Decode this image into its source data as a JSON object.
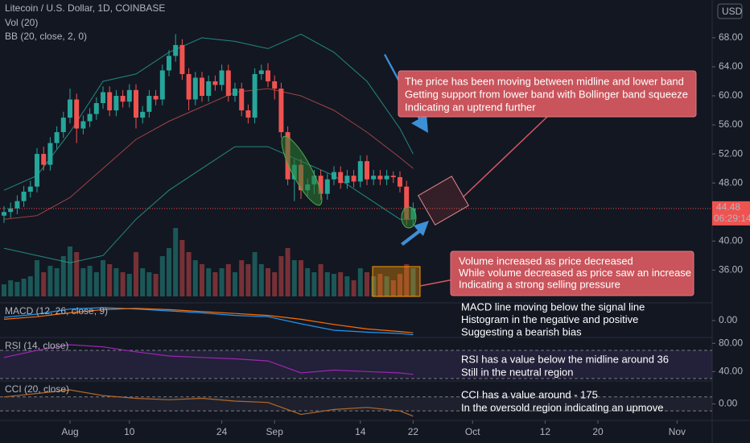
{
  "chart_data": [
    {
      "type": "candlestick",
      "title": "Litecoin / U.S. Dollar, 1D, COINBASE",
      "currency": "USD",
      "up_color": "#26a69a",
      "down_color": "#ef5350",
      "x": [
        "07-22",
        "07-23",
        "07-24",
        "07-25",
        "07-26",
        "07-27",
        "07-28",
        "07-29",
        "07-30",
        "07-31",
        "08-01",
        "08-02",
        "08-03",
        "08-04",
        "08-05",
        "08-06",
        "08-07",
        "08-08",
        "08-09",
        "08-10",
        "08-11",
        "08-12",
        "08-13",
        "08-14",
        "08-15",
        "08-16",
        "08-17",
        "08-18",
        "08-19",
        "08-20",
        "08-21",
        "08-22",
        "08-23",
        "08-24",
        "08-25",
        "08-26",
        "08-27",
        "08-28",
        "08-29",
        "08-30",
        "08-31",
        "09-01",
        "09-02",
        "09-03",
        "09-04",
        "09-05",
        "09-06",
        "09-07",
        "09-08",
        "09-09",
        "09-10",
        "09-11",
        "09-12",
        "09-13",
        "09-14",
        "09-15",
        "09-16",
        "09-17",
        "09-18",
        "09-19",
        "09-20",
        "09-21",
        "09-22"
      ],
      "open": [
        43.5,
        44.0,
        44.5,
        45.5,
        46.8,
        47.5,
        52.0,
        50.5,
        53.5,
        55.0,
        57.0,
        59.5,
        55.5,
        56.5,
        57.5,
        59.0,
        60.5,
        58.0,
        60.0,
        59.2,
        60.8,
        57.0,
        57.8,
        60.0,
        59.5,
        63.5,
        65.5,
        67.0,
        63.0,
        59.5,
        62.5,
        60.0,
        62.0,
        61.5,
        63.5,
        60.0,
        61.0,
        58.0,
        57.0,
        63.0,
        63.5,
        62.0,
        61.0,
        55.0,
        48.5,
        50.5,
        47.0,
        47.8,
        49.0,
        46.5,
        48.5,
        49.5,
        48.0,
        49.0,
        48.2,
        51.0,
        48.5,
        49.0,
        48.5,
        49.0,
        48.8,
        47.5,
        43.0
      ],
      "high": [
        44.8,
        45.3,
        46.3,
        47.6,
        48.3,
        52.8,
        53.0,
        54.3,
        55.8,
        57.8,
        61.0,
        60.3,
        57.3,
        58.3,
        59.8,
        61.3,
        61.3,
        60.8,
        60.8,
        61.6,
        61.6,
        58.6,
        60.8,
        60.8,
        64.3,
        66.3,
        68.5,
        67.8,
        63.8,
        63.3,
        63.3,
        62.8,
        62.8,
        64.3,
        64.3,
        61.8,
        61.8,
        58.8,
        63.8,
        64.3,
        64.5,
        62.8,
        61.8,
        55.8,
        51.3,
        51.3,
        48.6,
        49.8,
        49.8,
        49.3,
        50.3,
        50.3,
        49.8,
        49.8,
        51.8,
        51.8,
        49.8,
        49.8,
        49.8,
        49.6,
        49.6,
        48.3,
        45.3
      ],
      "low": [
        42.5,
        43.2,
        43.7,
        44.7,
        46.0,
        46.7,
        49.7,
        49.7,
        52.7,
        54.2,
        56.2,
        53.5,
        54.7,
        55.7,
        56.7,
        58.2,
        57.2,
        57.2,
        58.4,
        58.4,
        55.5,
        56.2,
        57.0,
        58.7,
        58.7,
        62.7,
        64.7,
        62.2,
        58.0,
        58.7,
        59.2,
        59.2,
        60.7,
        60.7,
        59.2,
        59.2,
        57.2,
        56.2,
        56.2,
        62.2,
        61.2,
        59.5,
        54.2,
        47.7,
        45.5,
        45.8,
        46.2,
        46.5,
        45.7,
        45.7,
        47.7,
        47.2,
        47.2,
        47.4,
        47.4,
        47.7,
        47.7,
        47.7,
        47.7,
        48.0,
        46.7,
        42.2,
        42.2
      ],
      "close": [
        44.0,
        44.5,
        45.5,
        46.8,
        47.5,
        52.0,
        50.5,
        53.5,
        55.0,
        57.0,
        59.5,
        55.5,
        56.5,
        57.5,
        59.0,
        60.5,
        58.0,
        60.0,
        59.2,
        60.8,
        57.0,
        57.8,
        60.0,
        59.5,
        63.5,
        65.5,
        67.0,
        63.0,
        59.5,
        62.5,
        60.0,
        62.0,
        61.5,
        63.5,
        60.0,
        61.0,
        58.0,
        57.0,
        63.0,
        63.5,
        62.0,
        61.0,
        55.0,
        48.5,
        50.5,
        47.0,
        47.8,
        49.0,
        46.5,
        48.5,
        49.5,
        48.0,
        49.0,
        48.2,
        51.0,
        48.5,
        49.0,
        48.5,
        49.0,
        48.8,
        47.5,
        43.0,
        44.5
      ],
      "volume": {
        "name": "Vol (20)",
        "axis": "y2",
        "values": [
          15,
          20,
          18,
          22,
          25,
          45,
          30,
          38,
          35,
          50,
          62,
          55,
          35,
          38,
          30,
          45,
          40,
          35,
          30,
          28,
          55,
          35,
          30,
          28,
          50,
          60,
          85,
          70,
          55,
          45,
          40,
          35,
          30,
          35,
          40,
          30,
          45,
          40,
          55,
          40,
          35,
          30,
          50,
          60,
          45,
          45,
          35,
          30,
          40,
          30,
          28,
          30,
          25,
          20,
          35,
          30,
          25,
          28,
          25,
          20,
          28,
          40,
          35
        ]
      },
      "y2lim": [
        0,
        100
      ],
      "bb": {
        "name": "BB (20, close, 2, 0)",
        "x": [
          "07-22",
          "07-27",
          "08-01",
          "08-06",
          "08-11",
          "08-16",
          "08-21",
          "08-26",
          "08-31",
          "09-05",
          "09-10",
          "09-15",
          "09-20",
          "09-22"
        ],
        "upper": [
          47,
          49,
          55,
          62,
          63,
          66,
          68,
          67.5,
          66.5,
          68.5,
          66,
          62,
          55.5,
          52
        ],
        "basis": [
          43,
          43.5,
          46,
          50,
          54,
          56.5,
          58.5,
          60.5,
          61,
          60,
          58,
          55,
          51.5,
          50
        ],
        "lower": [
          39,
          38,
          37,
          38,
          43,
          47,
          50,
          53,
          53,
          51,
          49,
          46,
          43,
          43
        ],
        "band_color": "#26a69a",
        "basis_color": "#c0504d"
      },
      "last_price": 44.48,
      "countdown": "06:29:14",
      "ylim": [
        31.6,
        73.2
      ],
      "yticks": [
        {
          "value": 36,
          "label": "36.00"
        },
        {
          "value": 40,
          "label": "40.00"
        },
        {
          "value": 48,
          "label": "48.00"
        },
        {
          "value": 52,
          "label": "52.00"
        },
        {
          "value": 56,
          "label": "56.00"
        },
        {
          "value": 60,
          "label": "60.00"
        },
        {
          "value": 64,
          "label": "64.00"
        },
        {
          "value": 68,
          "label": "68.00"
        }
      ],
      "xticks": [
        {
          "value": "08-01",
          "label": "Aug"
        },
        {
          "value": "08-10",
          "label": "10"
        },
        {
          "value": "08-24",
          "label": "24"
        },
        {
          "value": "09-01",
          "label": "Sep"
        },
        {
          "value": "09-14",
          "label": "14"
        },
        {
          "value": "09-22",
          "label": "22"
        },
        {
          "value": "10-01",
          "label": "Oct"
        },
        {
          "value": "10-12",
          "label": "12"
        },
        {
          "value": "10-20",
          "label": "20"
        },
        {
          "value": "11-01",
          "label": "Nov"
        }
      ]
    },
    {
      "type": "line",
      "title": "MACD (12, 26, close, 9)",
      "x": [
        "07-22",
        "07-27",
        "08-01",
        "08-06",
        "08-11",
        "08-16",
        "08-21",
        "08-26",
        "08-31",
        "09-05",
        "09-10",
        "09-15",
        "09-20",
        "09-22"
      ],
      "series": [
        {
          "color": "#2196f3",
          "values": [
            0.5,
            1.0,
            1.8,
            2.0,
            1.8,
            1.5,
            1.2,
            0.8,
            0.6,
            -0.5,
            -1.5,
            -1.8,
            -2.0,
            -2.2
          ]
        },
        {
          "color": "#ff6d00",
          "values": [
            0.2,
            0.6,
            1.2,
            1.7,
            1.9,
            1.7,
            1.4,
            1.1,
            0.8,
            0.2,
            -0.6,
            -1.3,
            -1.7,
            -1.9
          ]
        }
      ],
      "ylim": [
        -2.5,
        2.5
      ],
      "yticks": [
        {
          "value": 0,
          "label": "0.00"
        }
      ]
    },
    {
      "type": "line",
      "title": "RSI (14, close)",
      "x": [
        "07-22",
        "07-27",
        "08-01",
        "08-06",
        "08-11",
        "08-16",
        "08-21",
        "08-26",
        "08-31",
        "09-05",
        "09-10",
        "09-15",
        "09-20",
        "09-22"
      ],
      "series": [
        {
          "color": "#9c27b0",
          "values": [
            60,
            70,
            78,
            75,
            68,
            62,
            60,
            58,
            55,
            38,
            42,
            40,
            38,
            36
          ]
        }
      ],
      "band": [
        30,
        70
      ],
      "band_color": "#7e57c2",
      "ylim": [
        30,
        86
      ],
      "yticks": [
        {
          "value": 40,
          "label": "40.00"
        },
        {
          "value": 80,
          "label": "80.00"
        }
      ]
    },
    {
      "type": "line",
      "title": "CCI (20, close)",
      "x": [
        "07-22",
        "07-27",
        "08-01",
        "08-06",
        "08-11",
        "08-16",
        "08-21",
        "08-26",
        "08-31",
        "09-05",
        "09-10",
        "09-15",
        "09-20",
        "09-22"
      ],
      "series": [
        {
          "color": "#b2682a",
          "values": [
            100,
            150,
            200,
            120,
            80,
            60,
            80,
            40,
            20,
            -150,
            -80,
            -50,
            -100,
            -175
          ]
        }
      ],
      "band": [
        -100,
        100
      ],
      "band_color": "#5d6170",
      "ylim": [
        -225,
        305
      ],
      "yticks": [
        {
          "value": 0,
          "label": "0.00"
        }
      ]
    }
  ],
  "annotations": [
    {
      "lines": [
        "The price has been moving between midline and lower band",
        "Getting support from lower band with Bollinger band squeeze",
        "Indicating an uptrend further"
      ]
    },
    {
      "lines": [
        "Volume increased as price decreased",
        "While volume decreased as price saw an increase",
        "Indicating a strong selling pressure"
      ]
    },
    {
      "lines": [
        "MACD line moving below the signal line",
        "Histogram in the negative and positive",
        "Suggesting a bearish bias"
      ]
    },
    {
      "lines": [
        "RSI has a value below the midline around 36",
        "Still in the neutral region"
      ]
    },
    {
      "lines": [
        "CCI has a value around - 175",
        "In the oversold region indicating an upmove"
      ]
    }
  ]
}
